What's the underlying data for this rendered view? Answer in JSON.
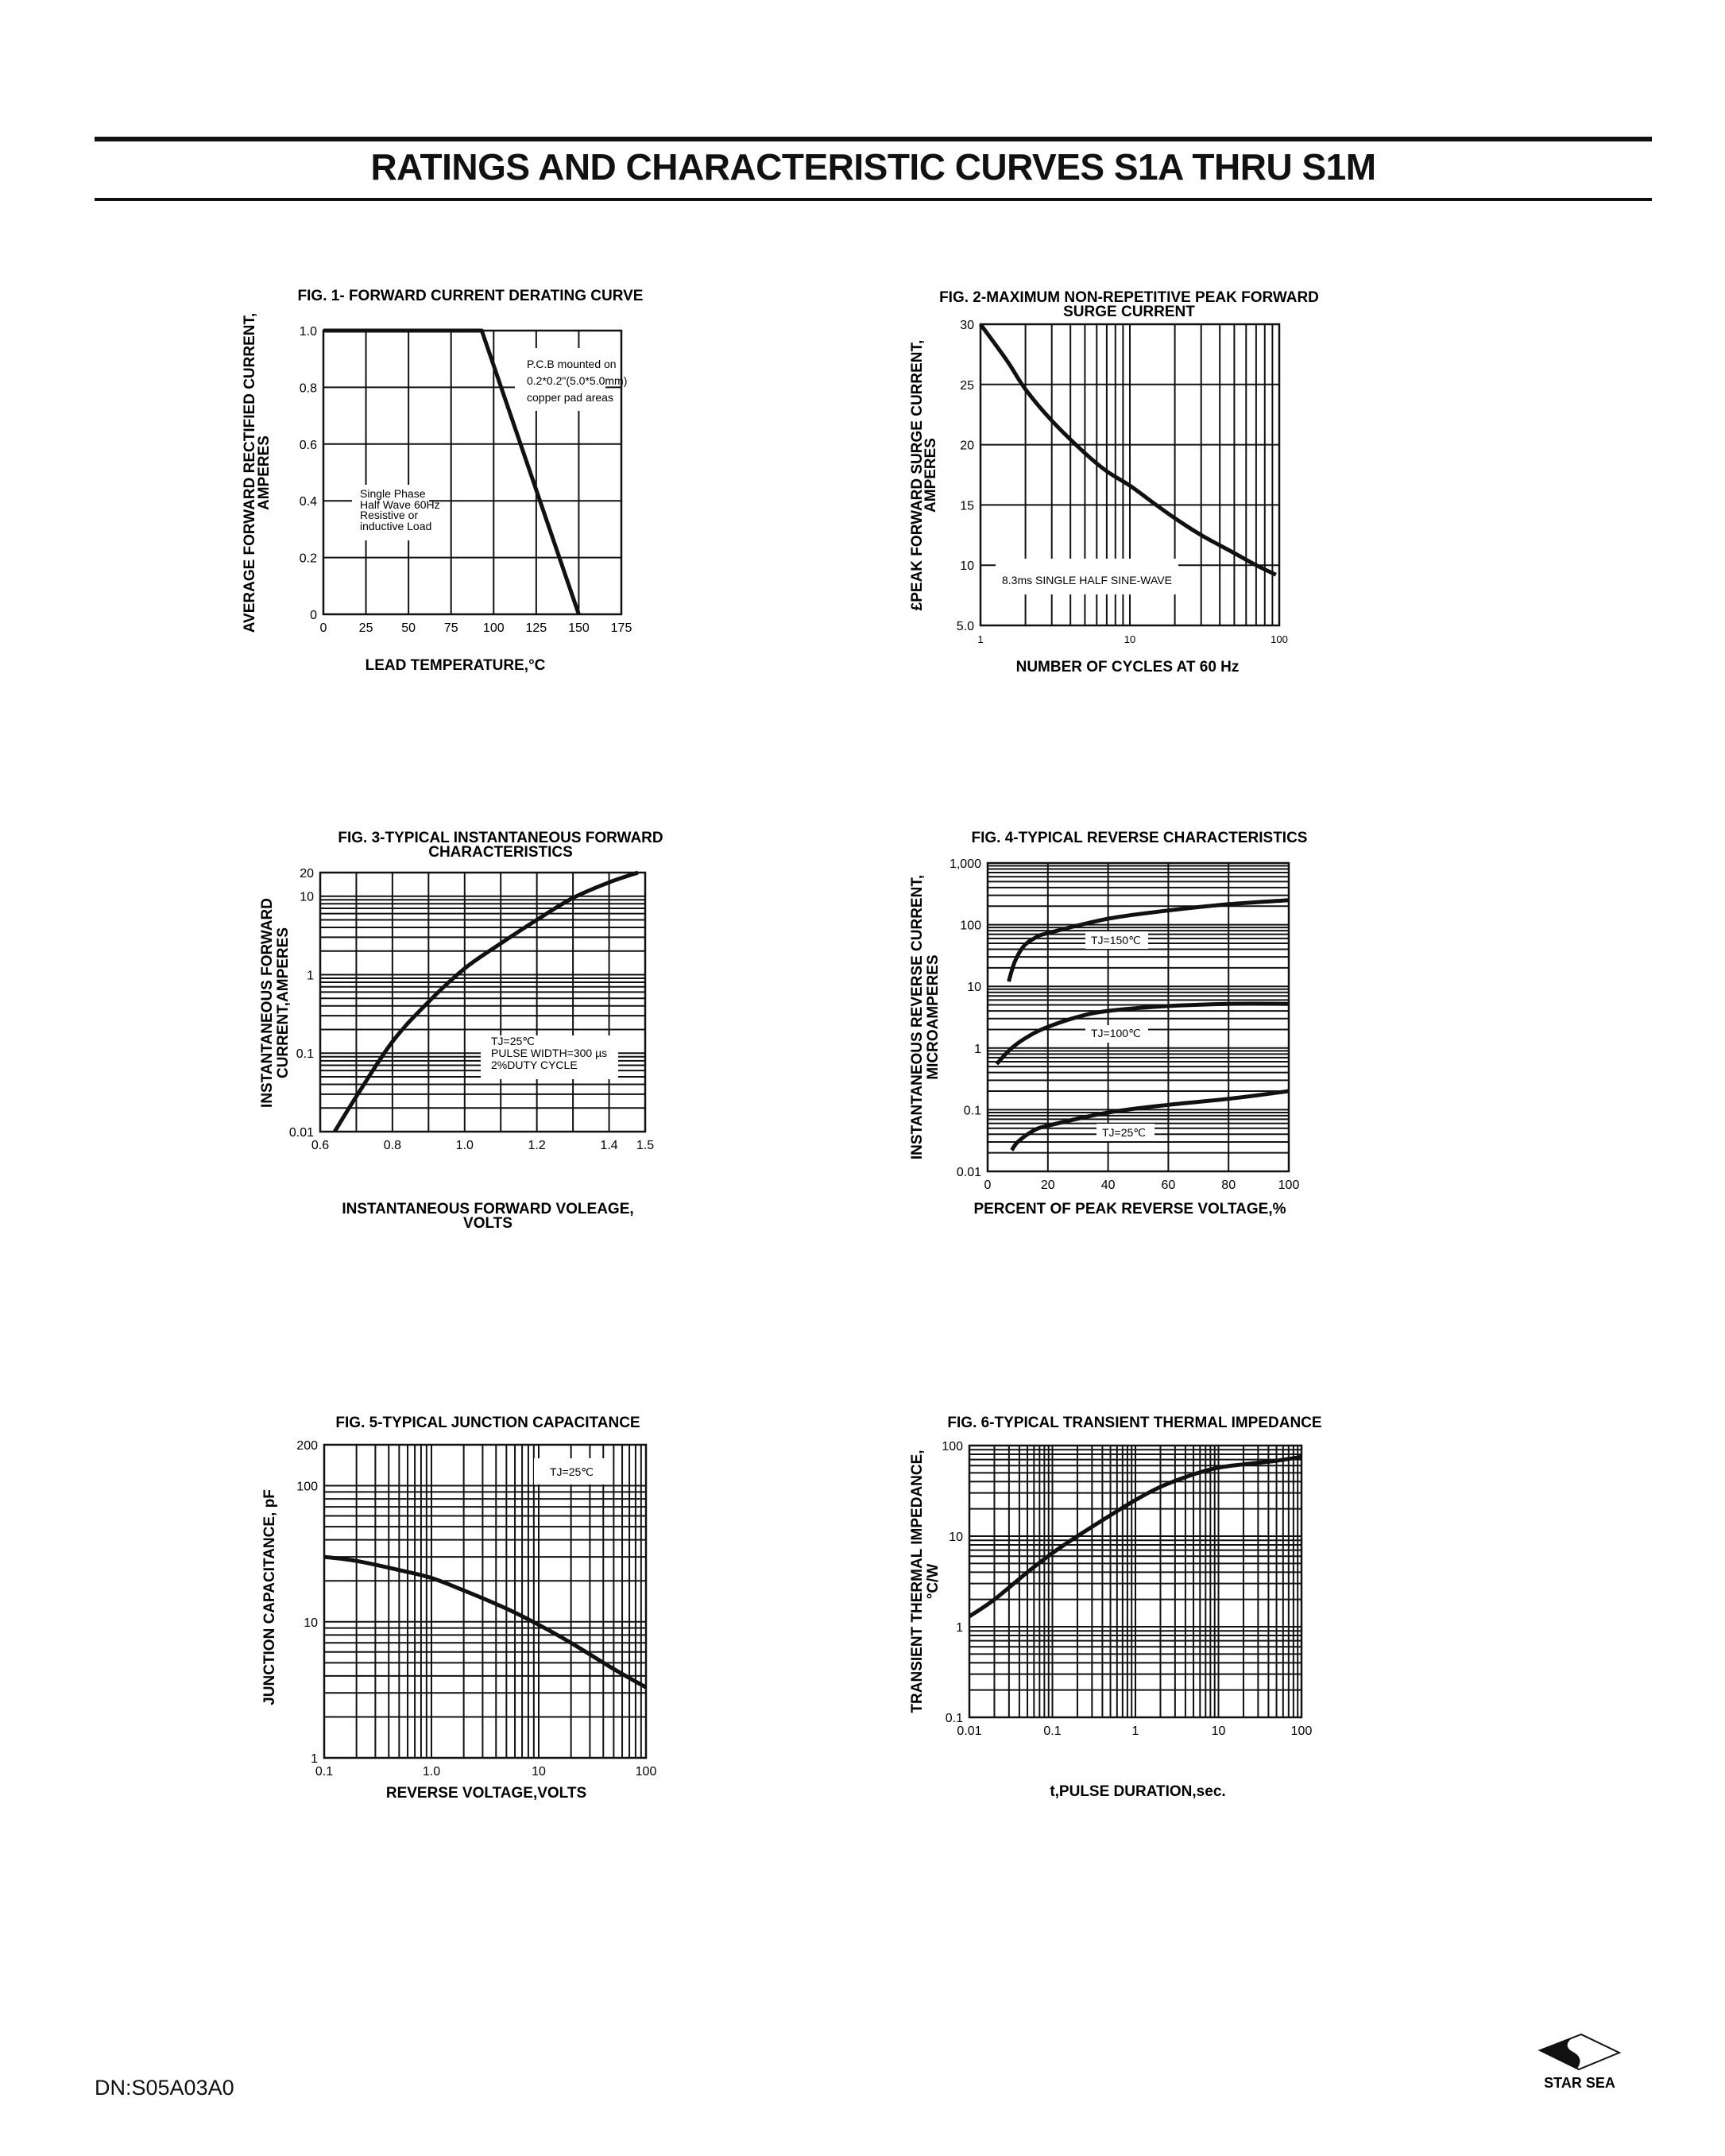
{
  "header": {
    "title": "RATINGS AND CHARACTERISTIC CURVES S1A THRU S1M"
  },
  "footer": {
    "doc_number": "DN:S05A03A0",
    "logo_text": "STAR SEA"
  },
  "chart_data": [
    {
      "type": "line",
      "title": [
        "FIG. 1- FORWARD CURRENT DERATING CURVE"
      ],
      "xlabel": [
        "LEAD TEMPERATURE,°C"
      ],
      "ylabel": [
        "AVERAGE FORWARD RECTIFIED CURRENT,",
        "AMPERES"
      ],
      "xscale": "linear",
      "yscale": "linear",
      "xlim": [
        0,
        175
      ],
      "ylim": [
        0,
        1.0
      ],
      "xgrid_step": 25,
      "ygrid_step": 0.2,
      "grid": true,
      "xticks": [
        {
          "v": 0,
          "label": "0"
        },
        {
          "v": 25,
          "label": "25"
        },
        {
          "v": 50,
          "label": "50"
        },
        {
          "v": 75,
          "label": "75"
        },
        {
          "v": 100,
          "label": "100"
        },
        {
          "v": 125,
          "label": "125"
        },
        {
          "v": 150,
          "label": "150"
        },
        {
          "v": 175,
          "label": "175"
        }
      ],
      "yticks": [
        {
          "v": 0,
          "label": "0"
        },
        {
          "v": 0.2,
          "label": "0.2"
        },
        {
          "v": 0.4,
          "label": "0.4"
        },
        {
          "v": 0.6,
          "label": "0.6"
        },
        {
          "v": 0.8,
          "label": "0.8"
        },
        {
          "v": 1.0,
          "label": "1.0"
        }
      ],
      "series": [
        {
          "name": "derating",
          "smooth": false,
          "points": [
            [
              0,
              1.0
            ],
            [
              93,
              1.0
            ],
            [
              150,
              0
            ]
          ]
        }
      ],
      "annotations": [
        {
          "lines": [
            "P.C.B mounted on",
            "0.2*0.2\"(5.0*5.0mm)",
            "copper pad areas"
          ]
        },
        {
          "lines": [
            "Single Phase",
            "Half Wave 60Hz",
            "Resistive or",
            "inductive Load"
          ]
        }
      ]
    },
    {
      "type": "line",
      "title": [
        "FIG. 2-MAXIMUM NON-REPETITIVE PEAK FORWARD",
        "SURGE CURRENT"
      ],
      "xlabel": [
        "NUMBER OF CYCLES AT 60 Hz"
      ],
      "ylabel": [
        "£PEAK  FORWARD SURGE CURRENT,",
        "AMPERES"
      ],
      "xscale": "log",
      "yscale": "linear",
      "xlim": [
        1,
        100
      ],
      "ylim": [
        5,
        30
      ],
      "ygrid_step": 5,
      "grid": true,
      "xticks": [
        {
          "v": 1,
          "label": "1"
        },
        {
          "v": 10,
          "label": "10"
        },
        {
          "v": 100,
          "label": "100"
        }
      ],
      "yticks": [
        {
          "v": 5,
          "label": "5.0"
        },
        {
          "v": 10,
          "label": "10"
        },
        {
          "v": 15,
          "label": "15"
        },
        {
          "v": 20,
          "label": "20"
        },
        {
          "v": 25,
          "label": "25"
        },
        {
          "v": 30,
          "label": "30"
        }
      ],
      "series": [
        {
          "name": "surge",
          "smooth": true,
          "points": [
            [
              1,
              30
            ],
            [
              1.5,
              27
            ],
            [
              2,
              24.6
            ],
            [
              3,
              22
            ],
            [
              5,
              19.3
            ],
            [
              7,
              17.8
            ],
            [
              10,
              16.6
            ],
            [
              15,
              15
            ],
            [
              20,
              13.9
            ],
            [
              30,
              12.5
            ],
            [
              50,
              11
            ],
            [
              70,
              10
            ],
            [
              95,
              9.2
            ]
          ]
        }
      ],
      "annotations": [
        {
          "lines": [
            "8.3ms SINGLE HALF SINE-WAVE"
          ]
        }
      ]
    },
    {
      "type": "line",
      "title": [
        "FIG. 3-TYPICAL INSTANTANEOUS FORWARD",
        "CHARACTERISTICS"
      ],
      "xlabel": [
        "INSTANTANEOUS FORWARD VOLEAGE,",
        "VOLTS"
      ],
      "ylabel": [
        "INSTANTANEOUS FORWARD",
        "CURRENT,AMPERES"
      ],
      "xscale": "linear",
      "yscale": "log",
      "xlim": [
        0.6,
        1.5
      ],
      "ylim": [
        0.01,
        20
      ],
      "xgrid_step": 0.1,
      "grid": true,
      "xticks": [
        {
          "v": 0.6,
          "label": "0.6"
        },
        {
          "v": 0.8,
          "label": "0.8"
        },
        {
          "v": 1.0,
          "label": "1.0"
        },
        {
          "v": 1.2,
          "label": "1.2"
        },
        {
          "v": 1.4,
          "label": "1.4"
        },
        {
          "v": 1.5,
          "label": "1.5"
        }
      ],
      "yticks": [
        {
          "v": 0.01,
          "label": "0.01"
        },
        {
          "v": 0.1,
          "label": "0.1"
        },
        {
          "v": 1,
          "label": "1"
        },
        {
          "v": 10,
          "label": "10"
        },
        {
          "v": 20,
          "label": "20"
        }
      ],
      "series": [
        {
          "name": "TJ=25C",
          "smooth": true,
          "points": [
            [
              0.64,
              0.01
            ],
            [
              0.7,
              0.028
            ],
            [
              0.8,
              0.14
            ],
            [
              0.9,
              0.45
            ],
            [
              1.0,
              1.2
            ],
            [
              1.1,
              2.5
            ],
            [
              1.2,
              5
            ],
            [
              1.3,
              9.5
            ],
            [
              1.4,
              15
            ],
            [
              1.48,
              20
            ]
          ]
        }
      ],
      "annotations": [
        {
          "lines": [
            "TJ=25℃",
            "PULSE WIDTH=300 µs",
            "2%DUTY CYCLE"
          ]
        }
      ]
    },
    {
      "type": "line",
      "title": [
        "FIG. 4-TYPICAL REVERSE CHARACTERISTICS"
      ],
      "xlabel": [
        "PERCENT OF PEAK REVERSE VOLTAGE,%"
      ],
      "ylabel": [
        "INSTANTANEOUS REVERSE CURRENT,",
        "MICROAMPERES"
      ],
      "xscale": "linear",
      "yscale": "log",
      "xlim": [
        0,
        100
      ],
      "ylim": [
        0.01,
        1000
      ],
      "xgrid_step": 20,
      "grid": true,
      "xticks": [
        {
          "v": 0,
          "label": "0"
        },
        {
          "v": 20,
          "label": "20"
        },
        {
          "v": 40,
          "label": "40"
        },
        {
          "v": 60,
          "label": "60"
        },
        {
          "v": 80,
          "label": "80"
        },
        {
          "v": 100,
          "label": "100"
        }
      ],
      "yticks": [
        {
          "v": 0.01,
          "label": "0.01"
        },
        {
          "v": 0.1,
          "label": "0.1"
        },
        {
          "v": 1,
          "label": "1"
        },
        {
          "v": 10,
          "label": "10"
        },
        {
          "v": 100,
          "label": "100"
        },
        {
          "v": 1000,
          "label": "1,000"
        }
      ],
      "series": [
        {
          "name": "TJ=150C",
          "smooth": true,
          "points": [
            [
              7,
              12
            ],
            [
              9,
              25
            ],
            [
              12,
              45
            ],
            [
              16,
              62
            ],
            [
              20,
              73
            ],
            [
              40,
              125
            ],
            [
              60,
              170
            ],
            [
              80,
              215
            ],
            [
              100,
              250
            ]
          ]
        },
        {
          "name": "TJ=100C",
          "smooth": true,
          "points": [
            [
              3,
              0.55
            ],
            [
              8,
              1.0
            ],
            [
              14,
              1.6
            ],
            [
              20,
              2.2
            ],
            [
              30,
              3.2
            ],
            [
              40,
              4.0
            ],
            [
              60,
              4.8
            ],
            [
              80,
              5.2
            ],
            [
              100,
              5.2
            ]
          ]
        },
        {
          "name": "TJ=25C",
          "smooth": true,
          "points": [
            [
              8,
              0.022
            ],
            [
              10,
              0.03
            ],
            [
              15,
              0.045
            ],
            [
              20,
              0.055
            ],
            [
              40,
              0.09
            ],
            [
              60,
              0.12
            ],
            [
              80,
              0.15
            ],
            [
              100,
              0.2
            ]
          ]
        }
      ],
      "annotations": [
        {
          "lines": [
            "TJ=150℃"
          ]
        },
        {
          "lines": [
            "TJ=100℃"
          ]
        },
        {
          "lines": [
            "TJ=25℃"
          ]
        }
      ]
    },
    {
      "type": "line",
      "title": [
        "FIG. 5-TYPICAL JUNCTION CAPACITANCE"
      ],
      "xlabel": [
        "REVERSE VOLTAGE,VOLTS"
      ],
      "ylabel": [
        "JUNCTION CAPACITANCE, pF"
      ],
      "xscale": "log",
      "yscale": "log",
      "xlim": [
        0.1,
        100
      ],
      "ylim": [
        1,
        200
      ],
      "grid": true,
      "xticks": [
        {
          "v": 0.1,
          "label": "0.1"
        },
        {
          "v": 1,
          "label": "1.0"
        },
        {
          "v": 10,
          "label": "10"
        },
        {
          "v": 100,
          "label": "100"
        }
      ],
      "yticks": [
        {
          "v": 1,
          "label": "1"
        },
        {
          "v": 10,
          "label": "10"
        },
        {
          "v": 100,
          "label": "100"
        },
        {
          "v": 200,
          "label": "200"
        }
      ],
      "series": [
        {
          "name": "TJ=25C",
          "smooth": true,
          "points": [
            [
              0.1,
              30
            ],
            [
              0.2,
              28
            ],
            [
              0.5,
              24
            ],
            [
              1,
              21
            ],
            [
              2,
              17
            ],
            [
              5,
              12.5
            ],
            [
              10,
              9.5
            ],
            [
              20,
              7
            ],
            [
              50,
              4.5
            ],
            [
              100,
              3.3
            ]
          ]
        }
      ],
      "annotations": [
        {
          "lines": [
            "TJ=25℃"
          ]
        }
      ]
    },
    {
      "type": "line",
      "title": [
        "FIG. 6-TYPICAL TRANSIENT THERMAL IMPEDANCE"
      ],
      "xlabel": [
        "t,PULSE DURATION,sec."
      ],
      "ylabel": [
        "TRANSIENT THERMAL IMPEDANCE,",
        "°C/W"
      ],
      "xscale": "log",
      "yscale": "log",
      "xlim": [
        0.01,
        100
      ],
      "ylim": [
        0.1,
        100
      ],
      "grid": true,
      "xticks": [
        {
          "v": 0.01,
          "label": "0.01"
        },
        {
          "v": 0.1,
          "label": "0.1"
        },
        {
          "v": 1,
          "label": "1"
        },
        {
          "v": 10,
          "label": "10"
        },
        {
          "v": 100,
          "label": "100"
        }
      ],
      "yticks": [
        {
          "v": 0.1,
          "label": "0.1"
        },
        {
          "v": 1,
          "label": "1"
        },
        {
          "v": 10,
          "label": "10"
        },
        {
          "v": 100,
          "label": "100"
        }
      ],
      "series": [
        {
          "name": "thermal",
          "smooth": true,
          "points": [
            [
              0.01,
              1.3
            ],
            [
              0.02,
              2
            ],
            [
              0.05,
              4
            ],
            [
              0.1,
              6.5
            ],
            [
              0.2,
              10
            ],
            [
              0.5,
              17
            ],
            [
              1,
              25
            ],
            [
              2,
              35
            ],
            [
              5,
              48
            ],
            [
              10,
              57
            ],
            [
              20,
              62
            ],
            [
              50,
              68
            ],
            [
              100,
              75
            ]
          ]
        }
      ],
      "annotations": []
    }
  ]
}
